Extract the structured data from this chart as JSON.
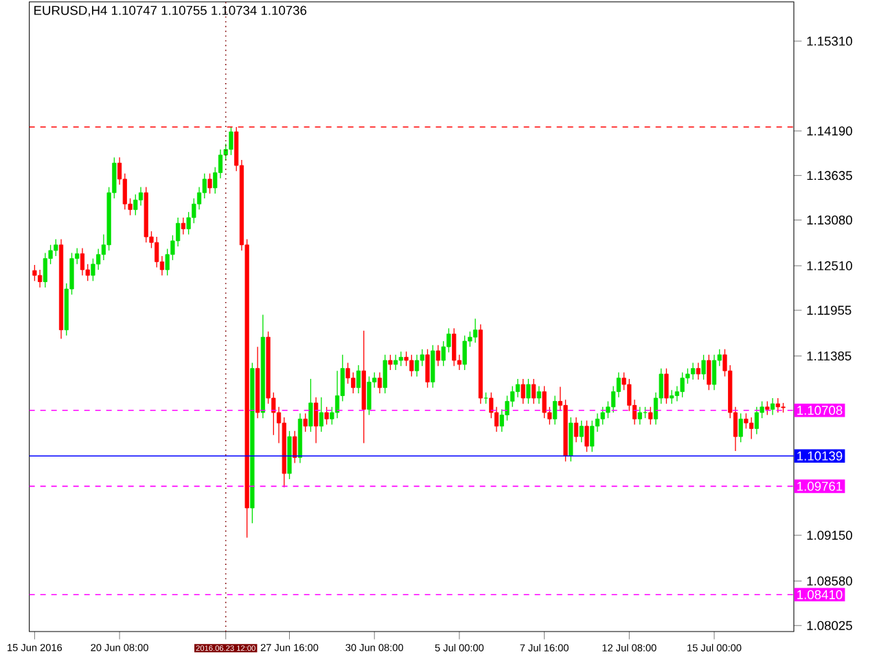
{
  "chart_data": {
    "type": "candlestick",
    "title": "EURUSD,H4  1.10747 1.10755 1.10734 1.10736",
    "categories": [
      "15 Jun 2016",
      null,
      null,
      null,
      null,
      null,
      null,
      null,
      null,
      null,
      null,
      null,
      null,
      null,
      null,
      null,
      "20 Jun 08:00",
      null,
      null,
      null,
      null,
      null,
      null,
      null,
      null,
      null,
      null,
      null,
      null,
      null,
      null,
      null,
      null,
      null,
      null,
      null,
      "2016.06.23 12:00",
      null,
      null,
      null,
      null,
      null,
      null,
      null,
      null,
      null,
      null,
      null,
      "27 Jun 16:00",
      null,
      null,
      null,
      null,
      null,
      null,
      null,
      null,
      null,
      null,
      null,
      null,
      null,
      null,
      null,
      "30 Jun 08:00",
      null,
      null,
      null,
      null,
      null,
      null,
      null,
      null,
      null,
      null,
      null,
      null,
      null,
      null,
      null,
      "5 Jul 00:00",
      null,
      null,
      null,
      null,
      null,
      null,
      null,
      null,
      null,
      null,
      null,
      null,
      null,
      null,
      null,
      "7 Jul 16:00",
      null,
      null,
      null,
      null,
      null,
      null,
      null,
      null,
      null,
      null,
      null,
      null,
      null,
      null,
      null,
      "12 Jul 08:00",
      null,
      null,
      null,
      null,
      null,
      null,
      null,
      null,
      null,
      null,
      null,
      null,
      null,
      null,
      null,
      "15 Jul 00:00",
      null,
      null,
      null,
      null,
      null,
      null,
      null,
      null,
      null,
      null,
      null,
      null,
      null
    ],
    "ohlc": [
      [
        1.1245,
        1.1252,
        1.1232,
        1.1239
      ],
      [
        1.1239,
        1.1246,
        1.1224,
        1.1231
      ],
      [
        1.1231,
        1.1267,
        1.1224,
        1.126
      ],
      [
        1.126,
        1.1277,
        1.1253,
        1.127
      ],
      [
        1.127,
        1.1284,
        1.1263,
        1.1277
      ],
      [
        1.1277,
        1.1284,
        1.116,
        1.1171
      ],
      [
        1.1171,
        1.1229,
        1.1164,
        1.1222
      ],
      [
        1.1222,
        1.1267,
        1.1215,
        1.126
      ],
      [
        1.126,
        1.1273,
        1.1253,
        1.1266
      ],
      [
        1.1266,
        1.1273,
        1.1239,
        1.1246
      ],
      [
        1.1246,
        1.1253,
        1.1232,
        1.1239
      ],
      [
        1.1239,
        1.126,
        1.1232,
        1.1253
      ],
      [
        1.1253,
        1.1272,
        1.1246,
        1.1265
      ],
      [
        1.1265,
        1.129,
        1.1258,
        1.1277
      ],
      [
        1.1277,
        1.1349,
        1.127,
        1.1342
      ],
      [
        1.1342,
        1.1386,
        1.1335,
        1.1379
      ],
      [
        1.1379,
        1.1386,
        1.1352,
        1.1359
      ],
      [
        1.1359,
        1.1366,
        1.1321,
        1.1328
      ],
      [
        1.1328,
        1.1335,
        1.1314,
        1.1321
      ],
      [
        1.1321,
        1.134,
        1.1314,
        1.1333
      ],
      [
        1.1333,
        1.1349,
        1.1326,
        1.1342
      ],
      [
        1.1342,
        1.1349,
        1.128,
        1.1287
      ],
      [
        1.1287,
        1.1294,
        1.1273,
        1.128
      ],
      [
        1.128,
        1.1287,
        1.1249,
        1.1256
      ],
      [
        1.1256,
        1.1263,
        1.1239,
        1.1246
      ],
      [
        1.1246,
        1.1272,
        1.1239,
        1.1265
      ],
      [
        1.1265,
        1.1289,
        1.1258,
        1.1282
      ],
      [
        1.1282,
        1.1311,
        1.1275,
        1.1304
      ],
      [
        1.1304,
        1.1311,
        1.129,
        1.1297
      ],
      [
        1.1297,
        1.1318,
        1.129,
        1.1311
      ],
      [
        1.1311,
        1.1335,
        1.1304,
        1.1328
      ],
      [
        1.1328,
        1.1349,
        1.1321,
        1.1342
      ],
      [
        1.1342,
        1.1366,
        1.1335,
        1.1359
      ],
      [
        1.1359,
        1.1366,
        1.1341,
        1.1348
      ],
      [
        1.1348,
        1.1374,
        1.1341,
        1.1367
      ],
      [
        1.1367,
        1.1396,
        1.136,
        1.1389
      ],
      [
        1.1389,
        1.1403,
        1.1382,
        1.1396
      ],
      [
        1.1396,
        1.1424,
        1.1389,
        1.1418
      ],
      [
        1.1418,
        1.1424,
        1.1369,
        1.1376
      ],
      [
        1.1376,
        1.1383,
        1.127,
        1.1277
      ],
      [
        1.1277,
        1.1284,
        1.0912,
        1.0949
      ],
      [
        1.0949,
        1.113,
        1.093,
        1.1123
      ],
      [
        1.1123,
        1.115,
        1.1061,
        1.1068
      ],
      [
        1.1068,
        1.119,
        1.1061,
        1.1162
      ],
      [
        1.1162,
        1.1169,
        1.1079,
        1.1086
      ],
      [
        1.1086,
        1.1093,
        1.104,
        1.1068
      ],
      [
        1.1068,
        1.1075,
        1.103,
        1.1055
      ],
      [
        1.1055,
        1.1062,
        1.0975,
        1.0992
      ],
      [
        1.0992,
        1.1045,
        1.0985,
        1.1038
      ],
      [
        1.1038,
        1.1045,
        1.1005,
        1.1012
      ],
      [
        1.1012,
        1.1067,
        1.1005,
        1.106
      ],
      [
        1.106,
        1.1067,
        1.1044,
        1.1051
      ],
      [
        1.1051,
        1.111,
        1.1044,
        1.108
      ],
      [
        1.108,
        1.1087,
        1.103,
        1.1051
      ],
      [
        1.1051,
        1.1087,
        1.1044,
        1.1068
      ],
      [
        1.1068,
        1.1075,
        1.1053,
        1.106
      ],
      [
        1.106,
        1.1075,
        1.1053,
        1.1068
      ],
      [
        1.1068,
        1.112,
        1.1061,
        1.1089
      ],
      [
        1.1089,
        1.114,
        1.1082,
        1.1123
      ],
      [
        1.1123,
        1.113,
        1.1104,
        1.1111
      ],
      [
        1.1111,
        1.1118,
        1.1092,
        1.1099
      ],
      [
        1.1099,
        1.1127,
        1.1092,
        1.112
      ],
      [
        1.112,
        1.117,
        1.103,
        1.1072
      ],
      [
        1.1072,
        1.1113,
        1.1065,
        1.1106
      ],
      [
        1.1106,
        1.1118,
        1.1099,
        1.1111
      ],
      [
        1.1111,
        1.1118,
        1.1092,
        1.1099
      ],
      [
        1.1099,
        1.114,
        1.1092,
        1.1133
      ],
      [
        1.1133,
        1.114,
        1.1121,
        1.1128
      ],
      [
        1.1128,
        1.114,
        1.1121,
        1.1133
      ],
      [
        1.1133,
        1.1144,
        1.1126,
        1.1137
      ],
      [
        1.1137,
        1.1144,
        1.1126,
        1.1133
      ],
      [
        1.1133,
        1.114,
        1.1113,
        1.112
      ],
      [
        1.112,
        1.114,
        1.1113,
        1.1133
      ],
      [
        1.1133,
        1.1147,
        1.1126,
        1.114
      ],
      [
        1.114,
        1.1147,
        1.1099,
        1.1106
      ],
      [
        1.1106,
        1.1152,
        1.1099,
        1.1145
      ],
      [
        1.1145,
        1.1152,
        1.1126,
        1.1133
      ],
      [
        1.1133,
        1.1157,
        1.1126,
        1.115
      ],
      [
        1.115,
        1.1173,
        1.1143,
        1.1166
      ],
      [
        1.1166,
        1.1173,
        1.1126,
        1.1133
      ],
      [
        1.1133,
        1.114,
        1.1121,
        1.1128
      ],
      [
        1.1128,
        1.1164,
        1.1121,
        1.1157
      ],
      [
        1.1157,
        1.1169,
        1.115,
        1.1162
      ],
      [
        1.1162,
        1.1185,
        1.1155,
        1.1171
      ],
      [
        1.1171,
        1.1178,
        1.1079,
        1.1086
      ],
      [
        1.1086,
        1.1093,
        1.1079,
        1.1086
      ],
      [
        1.1086,
        1.1093,
        1.1061,
        1.1068
      ],
      [
        1.1068,
        1.1075,
        1.1044,
        1.1051
      ],
      [
        1.1051,
        1.1072,
        1.1044,
        1.1065
      ],
      [
        1.1065,
        1.1089,
        1.1058,
        1.1082
      ],
      [
        1.1082,
        1.1101,
        1.1075,
        1.1094
      ],
      [
        1.1094,
        1.111,
        1.1087,
        1.1103
      ],
      [
        1.1103,
        1.111,
        1.1079,
        1.1086
      ],
      [
        1.1086,
        1.111,
        1.1079,
        1.1103
      ],
      [
        1.1103,
        1.111,
        1.1079,
        1.1086
      ],
      [
        1.1086,
        1.1101,
        1.1079,
        1.1094
      ],
      [
        1.1094,
        1.1101,
        1.1061,
        1.1068
      ],
      [
        1.1068,
        1.1075,
        1.1053,
        1.106
      ],
      [
        1.106,
        1.1089,
        1.1053,
        1.1082
      ],
      [
        1.1082,
        1.11,
        1.107,
        1.1077
      ],
      [
        1.1077,
        1.1084,
        1.1007,
        1.1014
      ],
      [
        1.1014,
        1.1062,
        1.1007,
        1.1055
      ],
      [
        1.1055,
        1.1062,
        1.1031,
        1.1038
      ],
      [
        1.1038,
        1.1058,
        1.1031,
        1.1051
      ],
      [
        1.1051,
        1.1058,
        1.1019,
        1.1026
      ],
      [
        1.1026,
        1.1058,
        1.1019,
        1.1051
      ],
      [
        1.1051,
        1.1067,
        1.1044,
        1.106
      ],
      [
        1.106,
        1.1075,
        1.1053,
        1.1068
      ],
      [
        1.1068,
        1.1082,
        1.1061,
        1.1075
      ],
      [
        1.1075,
        1.1101,
        1.1068,
        1.1094
      ],
      [
        1.1094,
        1.1118,
        1.1087,
        1.1111
      ],
      [
        1.1111,
        1.1118,
        1.1096,
        1.1103
      ],
      [
        1.1103,
        1.111,
        1.107,
        1.1077
      ],
      [
        1.1077,
        1.1084,
        1.1053,
        1.106
      ],
      [
        1.106,
        1.1075,
        1.1053,
        1.1068
      ],
      [
        1.1068,
        1.1075,
        1.1061,
        1.1068
      ],
      [
        1.1068,
        1.1075,
        1.1053,
        1.106
      ],
      [
        1.106,
        1.1093,
        1.1053,
        1.1086
      ],
      [
        1.1086,
        1.1123,
        1.1079,
        1.1116
      ],
      [
        1.1116,
        1.1123,
        1.1079,
        1.1086
      ],
      [
        1.1086,
        1.1096,
        1.1079,
        1.1089
      ],
      [
        1.1089,
        1.1101,
        1.1082,
        1.1094
      ],
      [
        1.1094,
        1.1118,
        1.1087,
        1.1111
      ],
      [
        1.1111,
        1.1123,
        1.1104,
        1.1116
      ],
      [
        1.1116,
        1.113,
        1.1109,
        1.1123
      ],
      [
        1.1123,
        1.113,
        1.1109,
        1.1116
      ],
      [
        1.1116,
        1.114,
        1.1109,
        1.1133
      ],
      [
        1.1133,
        1.114,
        1.1096,
        1.1103
      ],
      [
        1.1103,
        1.114,
        1.1096,
        1.1133
      ],
      [
        1.1133,
        1.1147,
        1.1126,
        1.114
      ],
      [
        1.114,
        1.1147,
        1.1113,
        1.112
      ],
      [
        1.112,
        1.1127,
        1.1061,
        1.1068
      ],
      [
        1.1068,
        1.1075,
        1.102,
        1.1038
      ],
      [
        1.1038,
        1.1067,
        1.1031,
        1.106
      ],
      [
        1.106,
        1.1067,
        1.1048,
        1.1055
      ],
      [
        1.1055,
        1.1062,
        1.1035,
        1.1048
      ],
      [
        1.1048,
        1.1075,
        1.1041,
        1.1068
      ],
      [
        1.1068,
        1.1082,
        1.1061,
        1.1075
      ],
      [
        1.1075,
        1.1082,
        1.1065,
        1.1072
      ],
      [
        1.1072,
        1.1086,
        1.1065,
        1.1079
      ],
      [
        1.1079,
        1.1086,
        1.1068,
        1.1075
      ],
      [
        1.1075,
        1.108,
        1.1068,
        1.1074
      ]
    ],
    "ylim": [
      1.0795,
      1.158
    ],
    "yticks": [
      {
        "value": 1.1531,
        "label": "1.15310"
      },
      {
        "value": 1.1419,
        "label": "1.14190"
      },
      1.13635,
      {
        "value": 1.1308,
        "label": "1.13080"
      },
      {
        "value": 1.1251,
        "label": "1.12510"
      },
      1.11955,
      1.11385,
      {
        "value": 1.0915,
        "label": "1.09150"
      },
      {
        "value": 1.0858,
        "label": "1.08580"
      },
      1.08025
    ],
    "ref_lines": [
      {
        "axis": "y",
        "value": 1.1424,
        "color": "#ff0000",
        "line_style": "dashed"
      },
      {
        "axis": "y",
        "value": 1.10708,
        "label": "1.10708",
        "color": "#ff00ff",
        "line_style": "dashed"
      },
      {
        "axis": "y",
        "value": 1.10139,
        "label": "1.10139",
        "color": "#0000ff",
        "line_style": "solid"
      },
      {
        "axis": "y",
        "value": 1.09761,
        "label": "1.09761",
        "color": "#ff00ff",
        "line_style": "dashed"
      },
      {
        "axis": "y",
        "value": 1.0841,
        "label": "1.08410",
        "color": "#ff00ff",
        "line_style": "dashed"
      },
      {
        "axis": "x",
        "value": "2016.06.23 12:00",
        "color": "#800000",
        "line_style": "dotted"
      }
    ]
  }
}
